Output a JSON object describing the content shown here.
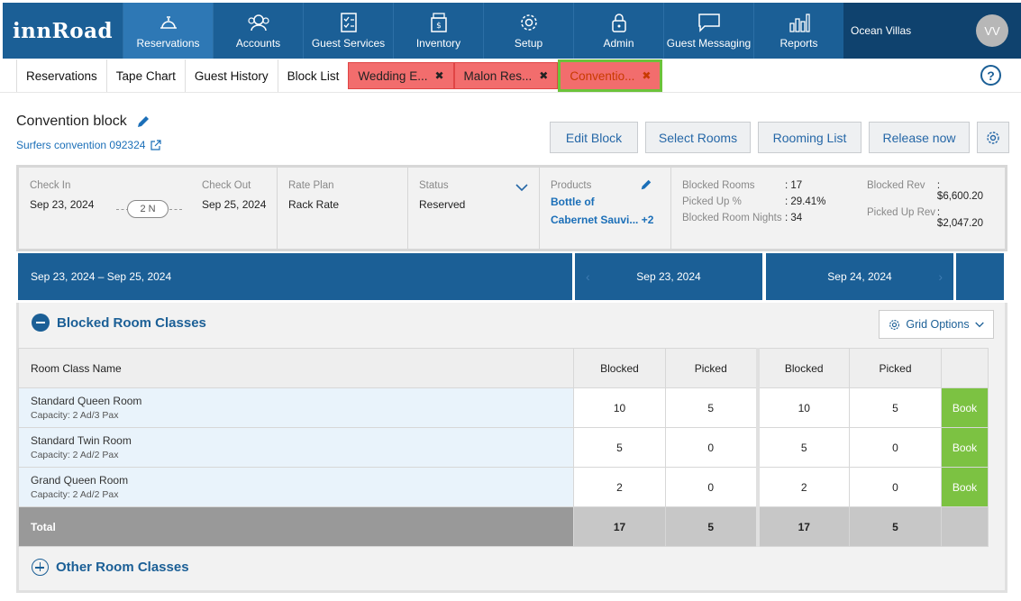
{
  "brand": "innRoad",
  "nav": [
    {
      "label": "Reservations",
      "icon": "bell-icon",
      "active": true
    },
    {
      "label": "Accounts",
      "icon": "users-icon"
    },
    {
      "label": "Guest Services",
      "icon": "checklist-icon"
    },
    {
      "label": "Inventory",
      "icon": "inventory-icon"
    },
    {
      "label": "Setup",
      "icon": "gear-icon"
    },
    {
      "label": "Admin",
      "icon": "lock-icon"
    },
    {
      "label": "Guest Messaging",
      "icon": "message-icon"
    },
    {
      "label": "Reports",
      "icon": "bar-chart-icon"
    }
  ],
  "property": "Ocean Villas",
  "avatar": "VV",
  "tabs": [
    {
      "label": "Reservations"
    },
    {
      "label": "Tape Chart"
    },
    {
      "label": "Guest History"
    },
    {
      "label": "Block List"
    },
    {
      "label": "Wedding E...",
      "closable": true
    },
    {
      "label": "Malon Res...",
      "closable": true
    },
    {
      "label": "Conventio...",
      "closable": true,
      "active": true
    }
  ],
  "block": {
    "title": "Convention block",
    "subtitle": "Surfers convention 092324"
  },
  "actions": {
    "edit": "Edit Block",
    "select": "Select Rooms",
    "rooming": "Rooming List",
    "release": "Release now"
  },
  "info": {
    "checkin_label": "Check In",
    "checkin": "Sep 23, 2024",
    "nights": "2 N",
    "checkout_label": "Check Out",
    "checkout": "Sep 25, 2024",
    "rateplan_label": "Rate Plan",
    "rateplan": "Rack Rate",
    "status_label": "Status",
    "status": "Reserved",
    "products_label": "Products",
    "product_line1": "Bottle of",
    "product_line2": "Cabernet Sauvi...",
    "product_more": "+2",
    "blocked_rooms_label": "Blocked Rooms",
    "blocked_rooms": ": 17",
    "picked_up_pct_label": "Picked Up %",
    "picked_up_pct": ": 29.41%",
    "blocked_nights_label": "Blocked Room Nights",
    "blocked_nights": ": 34",
    "blocked_rev_label": "Blocked Rev",
    "blocked_rev": ": $6,600.20",
    "picked_rev_label": "Picked Up Rev",
    "picked_rev": ": $2,047.20"
  },
  "datebar": {
    "range": "Sep 23, 2024 – Sep 25, 2024",
    "day1": "Sep 23, 2024",
    "day2": "Sep 24, 2024"
  },
  "section": {
    "blocked_title": "Blocked Room Classes",
    "grid_options": "Grid Options",
    "other_title": "Other Room Classes",
    "col_name": "Room Class Name",
    "col_blocked": "Blocked",
    "col_picked": "Picked",
    "book": "Book",
    "total_label": "Total"
  },
  "rows": [
    {
      "name": "Standard Queen Room",
      "cap": "Capacity: 2 Ad/3 Pax",
      "b1": "10",
      "p1": "5",
      "b2": "10",
      "p2": "5"
    },
    {
      "name": "Standard Twin Room",
      "cap": "Capacity: 2 Ad/2 Pax",
      "b1": "5",
      "p1": "0",
      "b2": "5",
      "p2": "0"
    },
    {
      "name": "Grand Queen Room",
      "cap": "Capacity: 2 Ad/2 Pax",
      "b1": "2",
      "p1": "0",
      "b2": "2",
      "p2": "0"
    }
  ],
  "totals": {
    "b1": "17",
    "p1": "5",
    "b2": "17",
    "p2": "5"
  }
}
